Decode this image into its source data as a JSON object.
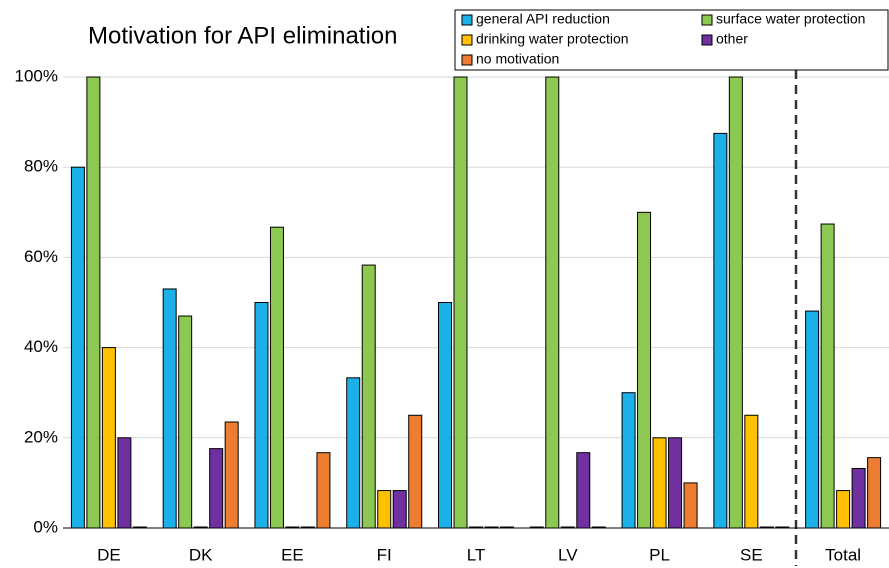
{
  "chart_data": {
    "type": "bar",
    "title": "Motivation for API elimination",
    "categories": [
      "DE",
      "DK",
      "EE",
      "FI",
      "LT",
      "LV",
      "PL",
      "SE",
      "Total"
    ],
    "series": [
      {
        "name": "general API reduction",
        "color": "#1cb0e8",
        "values": [
          80,
          53,
          50,
          33.3,
          50,
          0,
          30,
          87.5,
          48.1
        ]
      },
      {
        "name": "surface water protection",
        "color": "#8dc853",
        "values": [
          100,
          47,
          66.7,
          58.3,
          100,
          100,
          70,
          100,
          67.4
        ]
      },
      {
        "name": "drinking water protection",
        "color": "#ffc000",
        "values": [
          40,
          0,
          0,
          8.3,
          0,
          0,
          20,
          25,
          8.3
        ]
      },
      {
        "name": "other",
        "color": "#7030a0",
        "values": [
          20,
          17.6,
          0,
          8.3,
          0,
          16.7,
          20,
          0,
          13.2
        ]
      },
      {
        "name": "no motivation",
        "color": "#ed7d31",
        "values": [
          0,
          23.5,
          16.7,
          25,
          0,
          0,
          10,
          0,
          15.6
        ]
      }
    ],
    "ylim": [
      0,
      100
    ],
    "yticks": [
      {
        "value": 0,
        "label": "0%"
      },
      {
        "value": 20,
        "label": "20%"
      },
      {
        "value": 40,
        "label": "40%"
      },
      {
        "value": 60,
        "label": "60%"
      },
      {
        "value": 80,
        "label": "80%"
      },
      {
        "value": 100,
        "label": "100%"
      }
    ],
    "grid": true,
    "legend": "top-right"
  }
}
